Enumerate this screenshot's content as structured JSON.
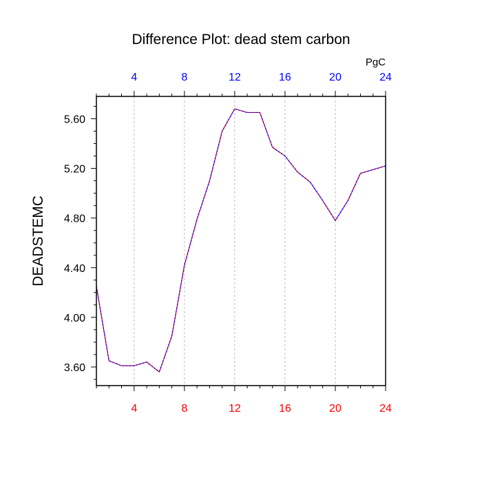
{
  "chart_data": {
    "type": "line",
    "title": "Difference Plot: dead stem carbon",
    "ylabel": "DEADSTEMC",
    "units": "PgC",
    "xlim": [
      1,
      24
    ],
    "ylim": [
      3.45,
      5.78
    ],
    "x_ticks": [
      4,
      8,
      12,
      16,
      20,
      24
    ],
    "x_tick_labels": [
      "4",
      "8",
      "12",
      "16",
      "20",
      "24"
    ],
    "y_ticks": [
      3.6,
      4.0,
      4.4,
      4.8,
      5.2,
      5.6
    ],
    "y_tick_labels": [
      "3.60",
      "4.00",
      "4.40",
      "4.80",
      "5.20",
      "5.60"
    ],
    "grid": "vertical-dashed",
    "series": [
      {
        "x": [
          1,
          2,
          3,
          4,
          5,
          6,
          7,
          8,
          9,
          10,
          11,
          12,
          13,
          14,
          15,
          16,
          17,
          18,
          19,
          20,
          21,
          22,
          23,
          24
        ],
        "values": [
          4.25,
          3.65,
          3.61,
          3.61,
          3.64,
          3.56,
          3.85,
          4.42,
          4.79,
          5.1,
          5.5,
          5.68,
          5.65,
          5.65,
          5.37,
          5.3,
          5.17,
          5.09,
          4.94,
          4.78,
          4.94,
          5.16,
          5.19,
          5.22
        ],
        "color_primary": "#ff0000",
        "color_secondary": "#0000ff"
      }
    ],
    "colors": {
      "bottom_tick_labels": "#ff0000",
      "top_tick_labels": "#0000ff",
      "axes": "#000000",
      "grid": "#bbbbbb"
    }
  }
}
